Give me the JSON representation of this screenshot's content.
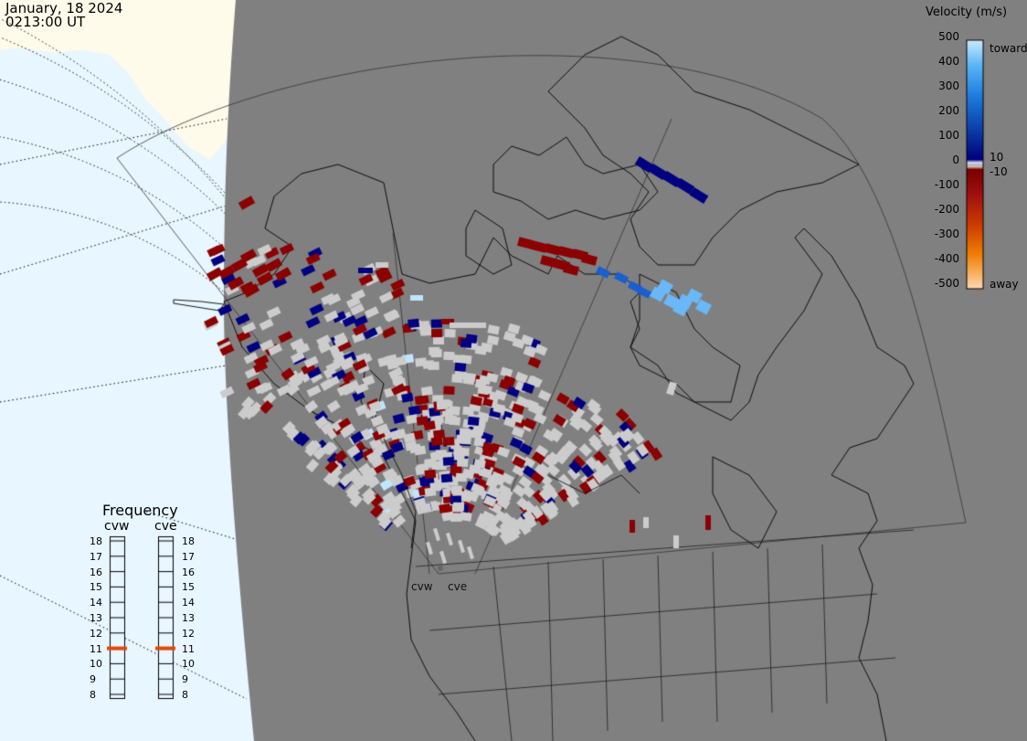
{
  "header": {
    "date": "January, 18 2024",
    "time": "0213:00 UT"
  },
  "colorbar": {
    "title": "Velocity (m/s)",
    "ticks": [
      "500",
      "400",
      "300",
      "200",
      "100",
      "10",
      "0",
      "-10",
      "-100",
      "-200",
      "-300",
      "-400",
      "-500"
    ],
    "toward_label": "toward",
    "away_label": "away"
  },
  "frequency_panel": {
    "title": "Frequency",
    "radars": [
      {
        "name": "cvw",
        "selected_mhz": 11
      },
      {
        "name": "cve",
        "selected_mhz": 11
      }
    ],
    "scale_mhz": [
      "18",
      "17",
      "16",
      "15",
      "14",
      "13",
      "12",
      "11",
      "10",
      "9",
      "8"
    ]
  },
  "map": {
    "radar_sites": [
      "cvw",
      "cve"
    ],
    "colors": {
      "ocean": "#e8f6ff",
      "land_outside": "#fffbea",
      "night_area": "#808080",
      "ground_scatter": "#cccccc",
      "coastline": "#000000",
      "toward_colors": [
        "#000080",
        "#0d3fa8",
        "#1a5fd1",
        "#2e8ff0",
        "#6ab8f8",
        "#bfe6ff"
      ],
      "away_colors": [
        "#8b0000",
        "#a81c08",
        "#cc3d00",
        "#e56a00",
        "#ff9a1a",
        "#ffd9b0"
      ]
    }
  }
}
